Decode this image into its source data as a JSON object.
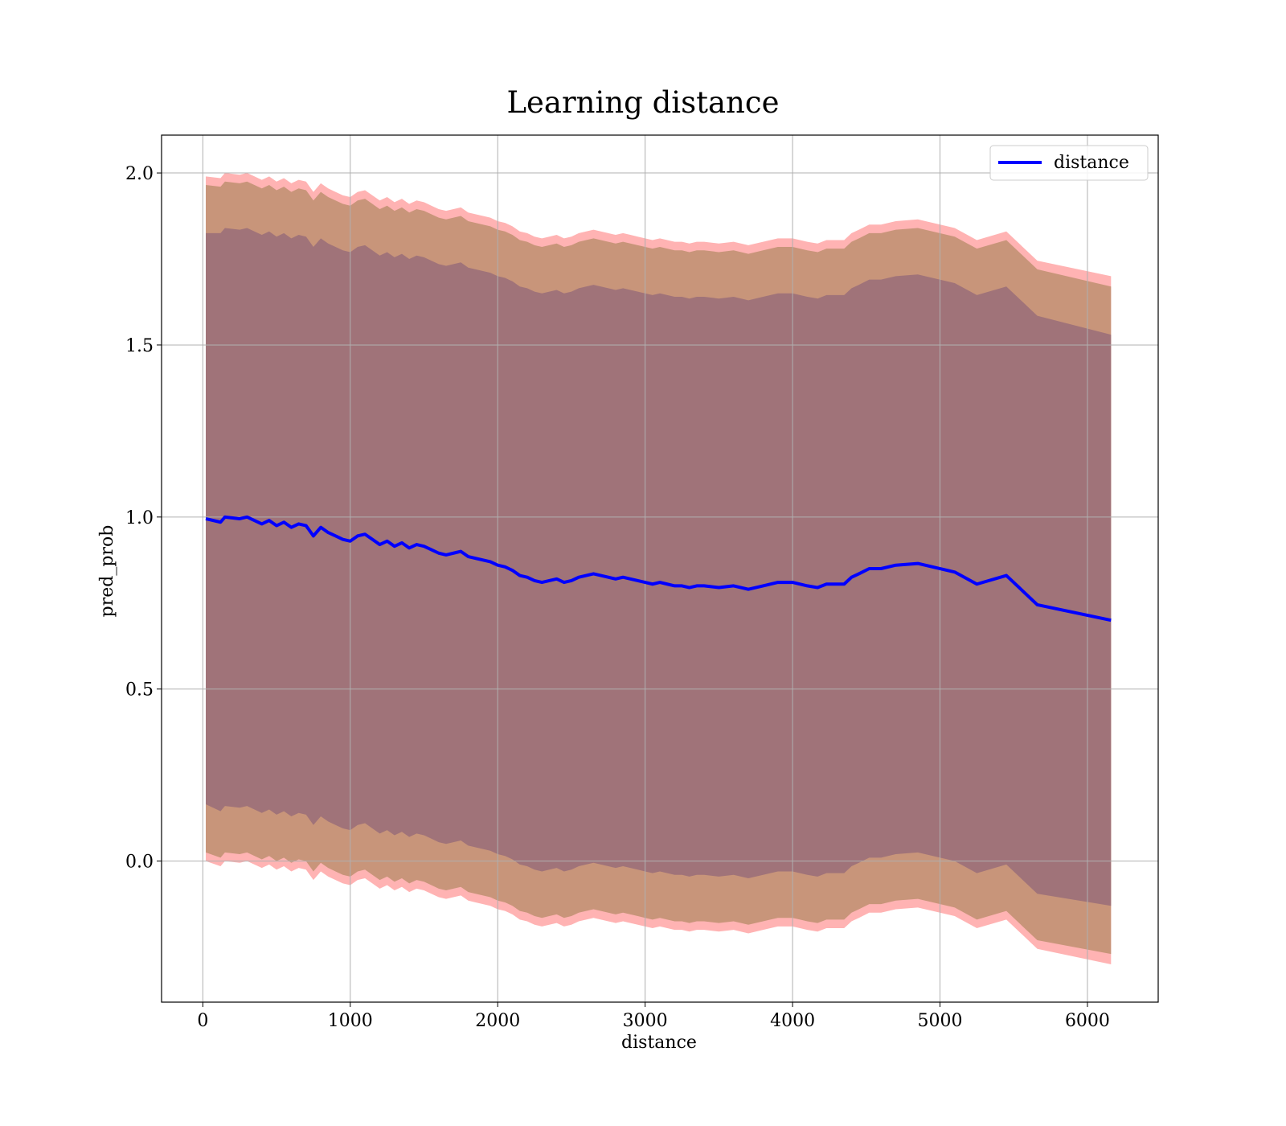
{
  "chart_data": {
    "type": "line",
    "title": "Learning distance",
    "xlabel": "distance",
    "ylabel": "pred_prob",
    "xlim": [
      -280,
      6480
    ],
    "ylim": [
      -0.41,
      2.11
    ],
    "xticks": [
      0,
      1000,
      2000,
      3000,
      4000,
      5000,
      6000
    ],
    "yticks": [
      0.0,
      0.5,
      1.0,
      1.5,
      2.0
    ],
    "grid": true,
    "legend": {
      "placement": "top-right",
      "entries": [
        "distance"
      ]
    },
    "colors": {
      "line": "#0000ff",
      "band_outer": "#ffb3b3",
      "band_middle": "#c8957a",
      "band_inner": "#a07379",
      "grid": "#b0b0b0"
    },
    "series": [
      {
        "name": "distance",
        "x": [
          20,
          120,
          150,
          250,
          300,
          400,
          450,
          500,
          550,
          600,
          650,
          700,
          750,
          800,
          850,
          900,
          950,
          1000,
          1050,
          1100,
          1150,
          1200,
          1250,
          1300,
          1350,
          1400,
          1450,
          1500,
          1550,
          1600,
          1650,
          1700,
          1750,
          1800,
          1850,
          1900,
          1950,
          2000,
          2050,
          2100,
          2150,
          2200,
          2250,
          2300,
          2350,
          2400,
          2450,
          2500,
          2550,
          2600,
          2650,
          2700,
          2750,
          2800,
          2850,
          2900,
          2950,
          3000,
          3050,
          3100,
          3150,
          3200,
          3250,
          3300,
          3350,
          3400,
          3500,
          3600,
          3700,
          3800,
          3900,
          4000,
          4100,
          4170,
          4230,
          4350,
          4400,
          4450,
          4520,
          4600,
          4700,
          4850,
          5100,
          5250,
          5450,
          5660,
          6160
        ],
        "y": [
          0.995,
          0.985,
          1.0,
          0.995,
          1.0,
          0.98,
          0.99,
          0.975,
          0.985,
          0.97,
          0.98,
          0.975,
          0.945,
          0.97,
          0.955,
          0.945,
          0.935,
          0.93,
          0.945,
          0.95,
          0.935,
          0.92,
          0.93,
          0.915,
          0.925,
          0.91,
          0.92,
          0.915,
          0.905,
          0.895,
          0.89,
          0.895,
          0.9,
          0.885,
          0.88,
          0.875,
          0.87,
          0.86,
          0.855,
          0.845,
          0.83,
          0.825,
          0.815,
          0.81,
          0.815,
          0.82,
          0.81,
          0.815,
          0.825,
          0.83,
          0.835,
          0.83,
          0.825,
          0.82,
          0.825,
          0.82,
          0.815,
          0.81,
          0.805,
          0.81,
          0.805,
          0.8,
          0.8,
          0.795,
          0.8,
          0.8,
          0.795,
          0.8,
          0.79,
          0.8,
          0.81,
          0.81,
          0.8,
          0.795,
          0.805,
          0.805,
          0.825,
          0.835,
          0.85,
          0.85,
          0.86,
          0.865,
          0.84,
          0.805,
          0.83,
          0.745,
          0.7
        ]
      }
    ],
    "bands": {
      "inner_halfwidth": [
        0.83,
        0.84,
        0.84,
        0.84,
        0.84,
        0.84,
        0.84,
        0.84,
        0.84,
        0.84,
        0.84,
        0.84,
        0.84,
        0.84,
        0.84,
        0.84,
        0.84,
        0.84,
        0.84,
        0.84,
        0.84,
        0.84,
        0.84,
        0.84,
        0.84,
        0.84,
        0.84,
        0.84,
        0.84,
        0.84,
        0.84,
        0.84,
        0.84,
        0.84,
        0.84,
        0.84,
        0.84,
        0.84,
        0.84,
        0.84,
        0.84,
        0.84,
        0.84,
        0.84,
        0.84,
        0.84,
        0.84,
        0.84,
        0.84,
        0.84,
        0.84,
        0.84,
        0.84,
        0.84,
        0.84,
        0.84,
        0.84,
        0.84,
        0.84,
        0.84,
        0.84,
        0.84,
        0.84,
        0.84,
        0.84,
        0.84,
        0.84,
        0.84,
        0.84,
        0.84,
        0.84,
        0.84,
        0.84,
        0.84,
        0.84,
        0.84,
        0.84,
        0.84,
        0.84,
        0.84,
        0.84,
        0.84,
        0.84,
        0.84,
        0.84,
        0.84,
        0.83
      ],
      "middle_halfwidth": [
        0.97,
        0.975,
        0.975,
        0.975,
        0.975,
        0.975,
        0.975,
        0.975,
        0.975,
        0.975,
        0.975,
        0.975,
        0.975,
        0.975,
        0.975,
        0.975,
        0.975,
        0.975,
        0.975,
        0.975,
        0.975,
        0.975,
        0.975,
        0.975,
        0.975,
        0.975,
        0.975,
        0.975,
        0.975,
        0.975,
        0.975,
        0.975,
        0.975,
        0.975,
        0.975,
        0.975,
        0.975,
        0.975,
        0.975,
        0.975,
        0.975,
        0.975,
        0.975,
        0.975,
        0.975,
        0.975,
        0.975,
        0.975,
        0.975,
        0.975,
        0.975,
        0.975,
        0.975,
        0.975,
        0.975,
        0.975,
        0.975,
        0.975,
        0.975,
        0.975,
        0.975,
        0.975,
        0.975,
        0.975,
        0.975,
        0.975,
        0.975,
        0.975,
        0.975,
        0.975,
        0.975,
        0.975,
        0.975,
        0.975,
        0.975,
        0.975,
        0.975,
        0.975,
        0.975,
        0.975,
        0.975,
        0.975,
        0.975,
        0.975,
        0.975,
        0.975,
        0.97
      ],
      "outer_halfwidth": [
        0.995,
        1.0,
        1.0,
        1.0,
        1.0,
        1.0,
        1.0,
        1.0,
        1.0,
        1.0,
        1.0,
        1.0,
        1.0,
        1.0,
        1.0,
        1.0,
        1.0,
        1.0,
        1.0,
        1.0,
        1.0,
        1.0,
        1.0,
        1.0,
        1.0,
        1.0,
        1.0,
        1.0,
        1.0,
        1.0,
        1.0,
        1.0,
        1.0,
        1.0,
        1.0,
        1.0,
        1.0,
        1.0,
        1.0,
        1.0,
        1.0,
        1.0,
        1.0,
        1.0,
        1.0,
        1.0,
        1.0,
        1.0,
        1.0,
        1.0,
        1.0,
        1.0,
        1.0,
        1.0,
        1.0,
        1.0,
        1.0,
        1.0,
        1.0,
        1.0,
        1.0,
        1.0,
        1.0,
        1.0,
        1.0,
        1.0,
        1.0,
        1.0,
        1.0,
        1.0,
        1.0,
        1.0,
        1.0,
        1.0,
        1.0,
        1.0,
        1.0,
        1.0,
        1.0,
        1.0,
        1.0,
        1.0,
        1.0,
        1.0,
        1.0,
        1.0,
        1.0
      ]
    }
  }
}
